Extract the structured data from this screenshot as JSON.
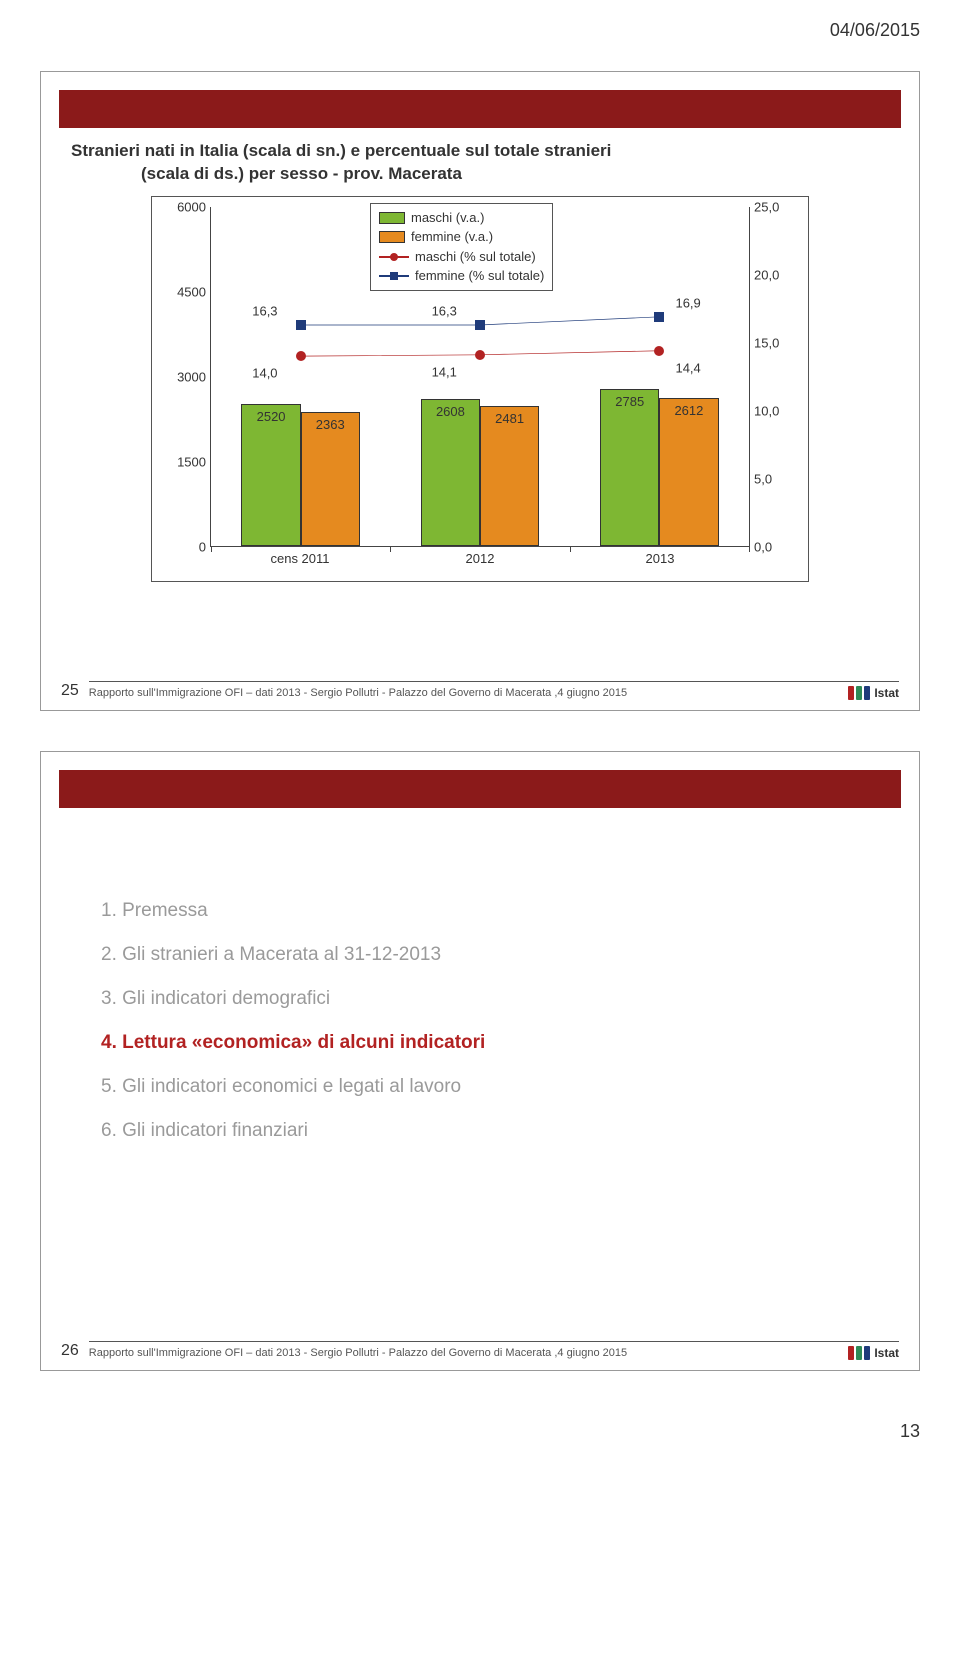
{
  "page_header_date": "04/06/2015",
  "page_number": "13",
  "slide1": {
    "number": "25",
    "title_line1": "Stranieri nati in Italia (scala di sn.) e percentuale sul totale stranieri",
    "title_line2": "(scala di ds.) per sesso - prov. Macerata",
    "footer_text": "Rapporto sull'Immigrazione OFI – dati 2013 - Sergio Pollutri - Palazzo del Governo di Macerata ,4 giugno 2015",
    "chart": {
      "type": "bar+line",
      "y_left": {
        "min": 0,
        "max": 6000,
        "step": 1500
      },
      "y_right": {
        "min": 0.0,
        "max": 25.0,
        "step": 5.0
      },
      "x_categories": [
        "cens 2011",
        "2012",
        "2013"
      ],
      "bars": {
        "maschi": {
          "color": "#7eb733",
          "values": [
            2520,
            2608,
            2785
          ]
        },
        "femmine": {
          "color": "#e58a1f",
          "values": [
            2363,
            2481,
            2612
          ]
        }
      },
      "lines": {
        "maschi_pct": {
          "color": "#b22222",
          "marker": "circle",
          "values": [
            14.0,
            14.1,
            14.4
          ]
        },
        "femmine_pct": {
          "color": "#1f3b7a",
          "marker": "square",
          "values": [
            16.3,
            16.3,
            16.9
          ]
        }
      },
      "legend": {
        "maschi": "maschi (v.a.)",
        "femmine": "femmine (v.a.)",
        "maschi_pct": "maschi (% sul totale)",
        "femmine_pct": "femmine (% sul totale)"
      },
      "marker_labels": {
        "maschi_pct": [
          "14,0",
          "14,1",
          "14,4"
        ],
        "femmine_pct": [
          "16,3",
          "16,3",
          "16,9"
        ]
      },
      "bar_labels": {
        "maschi": [
          "2520",
          "2608",
          "2785"
        ],
        "femmine": [
          "2363",
          "2481",
          "2612"
        ]
      },
      "background_color": "#ffffff",
      "bar_width_pct": 11
    }
  },
  "slide2": {
    "number": "26",
    "footer_text": "Rapporto sull'Immigrazione OFI – dati 2013 - Sergio Pollutri - Palazzo del Governo di Macerata ,4 giugno 2015",
    "items": [
      {
        "text": "1. Premessa",
        "cls": "li-grey"
      },
      {
        "text": "2. Gli stranieri a Macerata al 31-12-2013",
        "cls": "li-grey"
      },
      {
        "text": "3. Gli indicatori demografici",
        "cls": "li-grey"
      },
      {
        "text": "4. Lettura «economica» di alcuni indicatori",
        "cls": "li-red"
      },
      {
        "text": "5. Gli indicatori economici e legati al lavoro",
        "cls": "li-grey"
      },
      {
        "text": "6. Gli indicatori finanziari",
        "cls": "li-grey"
      }
    ]
  },
  "istat": {
    "label": "Istat",
    "bar_colors": [
      "#b22222",
      "#2e8b57",
      "#1f3b7a"
    ]
  }
}
